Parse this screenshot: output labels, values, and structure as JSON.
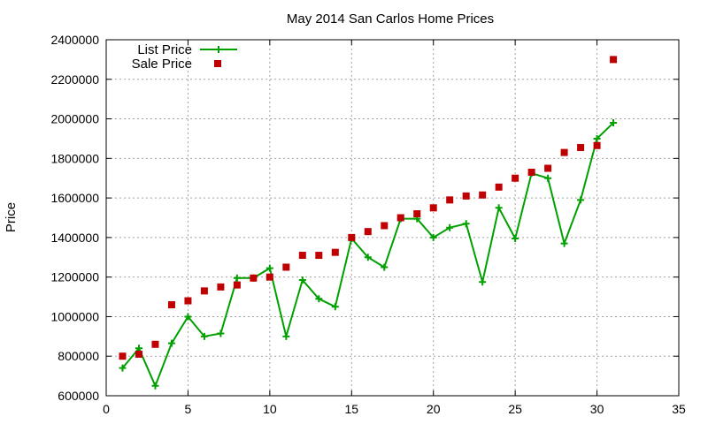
{
  "chart_data": {
    "type": "line",
    "title": "May 2014 San Carlos Home Prices",
    "xlabel": "",
    "ylabel": "Price",
    "xlim": [
      0,
      35
    ],
    "ylim": [
      600000,
      2400000
    ],
    "xticks": [
      0,
      5,
      10,
      15,
      20,
      25,
      30,
      35
    ],
    "yticks": [
      600000,
      800000,
      1000000,
      1200000,
      1400000,
      1600000,
      1800000,
      2000000,
      2200000,
      2400000
    ],
    "grid": true,
    "legend_position": "top-left",
    "series": [
      {
        "name": "List Price",
        "style": "line-plus",
        "color": "#00a000",
        "x": [
          1,
          2,
          3,
          4,
          5,
          6,
          7,
          8,
          9,
          10,
          11,
          12,
          13,
          14,
          15,
          16,
          17,
          18,
          19,
          20,
          21,
          22,
          23,
          24,
          25,
          26,
          27,
          28,
          29,
          30,
          31
        ],
        "y": [
          740000,
          840000,
          650000,
          865000,
          1000000,
          900000,
          915000,
          1195000,
          1195000,
          1245000,
          900000,
          1185000,
          1090000,
          1050000,
          1395000,
          1300000,
          1250000,
          1495000,
          1495000,
          1400000,
          1450000,
          1470000,
          1175000,
          1550000,
          1395000,
          1725000,
          1700000,
          1370000,
          1590000,
          1900000,
          1980000
        ]
      },
      {
        "name": "Sale Price",
        "style": "square-marker",
        "color": "#c00000",
        "x": [
          1,
          2,
          3,
          4,
          5,
          6,
          7,
          8,
          9,
          10,
          11,
          12,
          13,
          14,
          15,
          16,
          17,
          18,
          19,
          20,
          21,
          22,
          23,
          24,
          25,
          26,
          27,
          28,
          29,
          30,
          31
        ],
        "y": [
          800000,
          810000,
          860000,
          1060000,
          1080000,
          1130000,
          1150000,
          1160000,
          1195000,
          1200000,
          1250000,
          1310000,
          1310000,
          1325000,
          1400000,
          1430000,
          1460000,
          1500000,
          1520000,
          1550000,
          1590000,
          1610000,
          1615000,
          1655000,
          1700000,
          1730000,
          1750000,
          1830000,
          1855000,
          1865000,
          2300000
        ]
      }
    ]
  }
}
